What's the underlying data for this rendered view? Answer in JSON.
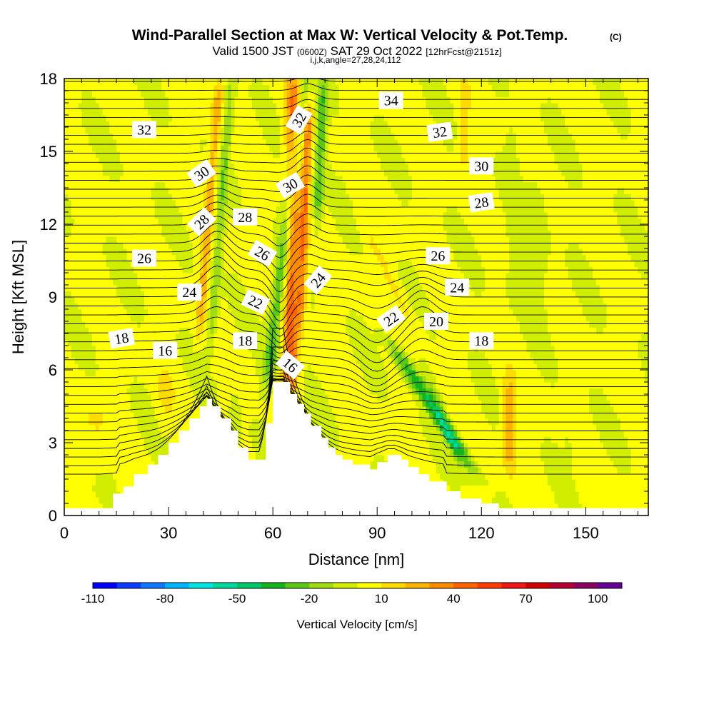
{
  "chart_data": {
    "type": "heatmap",
    "title": "Wind-Parallel Section at Max W: Vertical Velocity & Pot.Temp.",
    "title_mark": "(C)",
    "subtitle_valid": "Valid 1500 JST",
    "subtitle_utc": "(0600Z)",
    "subtitle_date": "SAT 29 Oct 2022",
    "subtitle_fcst": "[12hrFcst@2151z]",
    "subtitle_indices": "i,j,k,angle=27,28,24,112",
    "xlabel": "Distance [nm]",
    "ylabel": "Height [Kft MSL]",
    "xlim": [
      0,
      168
    ],
    "ylim": [
      0,
      18
    ],
    "x_ticks": [
      "0",
      "30",
      "60",
      "90",
      "120",
      "150"
    ],
    "x_tick_values": [
      0,
      30,
      60,
      90,
      120,
      150
    ],
    "y_ticks": [
      "0",
      "3",
      "6",
      "9",
      "12",
      "15",
      "18"
    ],
    "y_tick_values": [
      0,
      3,
      6,
      9,
      12,
      15,
      18
    ],
    "colorbar": {
      "label": "Vertical Velocity [cm/s]",
      "tick_labels": [
        "-110",
        "-80",
        "-50",
        "-20",
        "10",
        "40",
        "70",
        "100"
      ],
      "tick_values": [
        -110,
        -80,
        -50,
        -20,
        10,
        40,
        70,
        100
      ],
      "min": -110,
      "max": 110,
      "colors": [
        "#0000ff",
        "#0a3cff",
        "#0a78ff",
        "#00b4ff",
        "#00e6e6",
        "#00dca0",
        "#00c864",
        "#14b41e",
        "#5ac814",
        "#a0dc14",
        "#d2ee00",
        "#ffff00",
        "#ffdc00",
        "#ffb400",
        "#ff8c00",
        "#ff6400",
        "#ff3c00",
        "#f01414",
        "#d20000",
        "#b40032",
        "#8c0064",
        "#640096"
      ]
    },
    "terrain_profile": {
      "x": [
        0,
        10,
        14,
        17,
        20,
        24,
        27,
        30,
        33,
        36,
        39,
        41,
        42.5,
        45,
        48,
        50,
        53,
        56,
        58,
        60,
        61,
        63,
        65,
        67,
        69,
        71,
        74,
        76,
        78,
        80,
        83,
        88,
        90,
        93,
        95,
        97,
        99,
        102,
        105,
        110,
        114,
        120,
        125,
        168
      ],
      "y": [
        0.3,
        0.3,
        0.9,
        1.2,
        1.7,
        2.1,
        2.5,
        3.0,
        3.5,
        4.0,
        4.5,
        4.8,
        4.5,
        4.0,
        3.5,
        2.8,
        2.3,
        2.3,
        3.8,
        5.5,
        5.5,
        5.5,
        5.0,
        4.6,
        4.2,
        3.7,
        3.2,
        2.8,
        2.5,
        2.3,
        2.1,
        1.9,
        2.2,
        2.5,
        2.5,
        2.3,
        2.0,
        1.7,
        1.4,
        1.0,
        0.7,
        0.5,
        0.3,
        0.3
      ]
    },
    "w_field": {
      "background": 2,
      "features": [
        {
          "x0": 65,
          "slope": 0.1,
          "sigma_x": 2.2,
          "y_lo": 5,
          "y_hi": 18,
          "amp": 45
        },
        {
          "x0": 67.5,
          "slope": 0.25,
          "sigma_x": 1.3,
          "y_lo": 8,
          "y_hi": 17,
          "amp": 35
        },
        {
          "x0": 59,
          "slope": 0.85,
          "sigma_x": 2.0,
          "y_lo": 5.5,
          "y_hi": 18,
          "amp": -32
        },
        {
          "x0": 71,
          "slope": 0.3,
          "sigma_x": 1.4,
          "y_lo": 12,
          "y_hi": 18,
          "amp": -30
        },
        {
          "x0": 38,
          "slope": 0.55,
          "sigma_x": 1.4,
          "y_lo": 7.5,
          "y_hi": 18,
          "amp": 25
        },
        {
          "x0": 41.5,
          "slope": 0.55,
          "sigma_x": 1.4,
          "y_lo": 7,
          "y_hi": 18,
          "amp": -20
        },
        {
          "x0": 99,
          "slope": -4.5,
          "sigma_x": 2.2,
          "y_lo": 2,
          "y_hi": 7,
          "amp": -42
        },
        {
          "x0": 104,
          "slope": -2.5,
          "sigma_x": 1.6,
          "y_lo": 2,
          "y_hi": 6,
          "amp": -15
        },
        {
          "x0": 107,
          "slope": -3.5,
          "sigma_x": 2.0,
          "y_lo": 6,
          "y_hi": 12,
          "amp": 10
        },
        {
          "x0": 128,
          "slope": 0,
          "sigma_x": 2.0,
          "y_lo": 2,
          "y_hi": 5.5,
          "amp": 28
        },
        {
          "x0": 136,
          "slope": 0,
          "sigma_x": 3.0,
          "y_lo": 8,
          "y_hi": 14,
          "amp": -9
        },
        {
          "x0": 129,
          "slope": 0,
          "sigma_x": 2.0,
          "y_lo": 9,
          "y_hi": 16,
          "amp": -6
        },
        {
          "x0": 145,
          "slope": 0,
          "sigma_x": 1.2,
          "y_lo": 2,
          "y_hi": 3,
          "amp": -12
        },
        {
          "x0": 29,
          "slope": 0,
          "sigma_x": 2.5,
          "y_lo": 4,
          "y_hi": 6,
          "amp": 10
        },
        {
          "x0": 8,
          "slope": 0,
          "sigma_x": 5.0,
          "y_lo": 2,
          "y_hi": 5,
          "amp": 9
        },
        {
          "x0": 49,
          "slope": 0,
          "sigma_x": 1.3,
          "y_lo": 2.5,
          "y_hi": 4.5,
          "amp": -14
        },
        {
          "x0": 115,
          "slope": 0,
          "sigma_x": 1.6,
          "y_lo": 14,
          "y_hi": 18,
          "amp": 12
        }
      ]
    },
    "isentrope_labels": [
      {
        "text": "32",
        "x": 23,
        "y": 15.9,
        "angle": 0
      },
      {
        "text": "30",
        "x": 39.5,
        "y": 14.1,
        "angle": -35
      },
      {
        "text": "28",
        "x": 39.5,
        "y": 12.1,
        "angle": -45
      },
      {
        "text": "26",
        "x": 23,
        "y": 10.6,
        "angle": 0
      },
      {
        "text": "24",
        "x": 36,
        "y": 9.2,
        "angle": 0
      },
      {
        "text": "18",
        "x": 16.5,
        "y": 7.3,
        "angle": -10
      },
      {
        "text": "16",
        "x": 29,
        "y": 6.8,
        "angle": 0
      },
      {
        "text": "28",
        "x": 52,
        "y": 12.3,
        "angle": 0
      },
      {
        "text": "26",
        "x": 57,
        "y": 10.8,
        "angle": 30
      },
      {
        "text": "22",
        "x": 55,
        "y": 8.8,
        "angle": 25
      },
      {
        "text": "18",
        "x": 52,
        "y": 7.2,
        "angle": 0
      },
      {
        "text": "16",
        "x": 65,
        "y": 6.2,
        "angle": 40
      },
      {
        "text": "32",
        "x": 67.5,
        "y": 16.3,
        "angle": -60
      },
      {
        "text": "30",
        "x": 65,
        "y": 13.6,
        "angle": -30
      },
      {
        "text": "24",
        "x": 73,
        "y": 9.7,
        "angle": -50
      },
      {
        "text": "34",
        "x": 94,
        "y": 17.1,
        "angle": 0
      },
      {
        "text": "32",
        "x": 108,
        "y": 15.8,
        "angle": -8
      },
      {
        "text": "30",
        "x": 120,
        "y": 14.4,
        "angle": 0
      },
      {
        "text": "28",
        "x": 120,
        "y": 12.9,
        "angle": -8
      },
      {
        "text": "26",
        "x": 107.5,
        "y": 10.7,
        "angle": 0
      },
      {
        "text": "24",
        "x": 113,
        "y": 9.4,
        "angle": 0
      },
      {
        "text": "22",
        "x": 94,
        "y": 8.1,
        "angle": -35
      },
      {
        "text": "20",
        "x": 107,
        "y": 8.0,
        "angle": 0
      },
      {
        "text": "18",
        "x": 120,
        "y": 7.2,
        "angle": 0
      }
    ]
  }
}
